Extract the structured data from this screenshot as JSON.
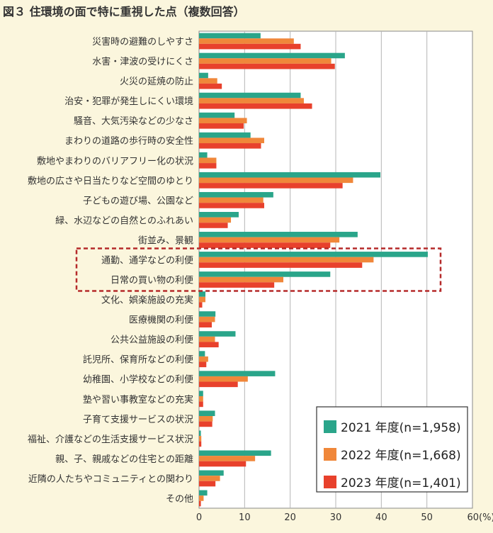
{
  "chart_data": {
    "type": "bar",
    "orientation": "horizontal",
    "title": "図３ 住環境の面で特に重視した点（複数回答）",
    "categories": [
      "災害時の避難のしやすさ",
      "水害・津波の受けにくさ",
      "火災の延焼の防止",
      "治安・犯罪が発生しにくい環境",
      "騒音、大気汚染などの少なさ",
      "まわりの道路の歩行時の安全性",
      "敷地やまわりのバリアフリー化の状況",
      "敷地の広さや日当たりなど空間のゆとり",
      "子どもの遊び場、公園など",
      "緑、水辺などの自然とのふれあい",
      "街並み、景観",
      "通勤、通学などの利便",
      "日常の買い物の利便",
      "文化、娯楽施設の充実",
      "医療機関の利便",
      "公共公益施設の利便",
      "託児所、保育所などの利便",
      "幼稚園、小学校などの利便",
      "塾や習い事教室などの充実",
      "子育て支援サービスの状況",
      "福祉、介護などの生活支援サービス状況",
      "親、子、親戚などの住宅との距離",
      "近隣の人たちやコミュニティとの関わり",
      "その他"
    ],
    "series": [
      {
        "name": "2021 年度(n=1,958)",
        "color": "#2aa58a",
        "values": [
          13.5,
          32.0,
          2.0,
          22.3,
          7.8,
          11.3,
          1.8,
          39.8,
          16.3,
          8.7,
          34.8,
          50.2,
          28.8,
          1.4,
          3.6,
          8.0,
          1.3,
          16.7,
          0.9,
          3.5,
          0.4,
          15.8,
          5.4,
          1.8
        ]
      },
      {
        "name": "2022 年度(n=1,668)",
        "color": "#f0873a",
        "values": [
          20.8,
          29.0,
          4.0,
          23.0,
          10.5,
          14.3,
          3.8,
          33.8,
          14.1,
          7.0,
          30.8,
          38.3,
          18.5,
          1.4,
          3.5,
          3.5,
          2.0,
          10.7,
          0.9,
          3.0,
          0.5,
          12.3,
          4.6,
          1.0
        ]
      },
      {
        "name": "2023 年度(n=1,401)",
        "color": "#e8412c",
        "values": [
          22.3,
          29.8,
          5.0,
          24.8,
          9.8,
          13.6,
          3.8,
          31.5,
          14.3,
          6.3,
          28.8,
          35.8,
          16.5,
          0.7,
          2.8,
          4.3,
          1.6,
          8.5,
          0.9,
          2.9,
          0.5,
          10.3,
          3.6,
          0.4
        ]
      }
    ],
    "xlim": [
      0,
      60
    ],
    "xticks": [
      "0",
      "10",
      "20",
      "30",
      "40",
      "50",
      "60(%)"
    ],
    "grid": true,
    "legend_position": "bottom-right",
    "highlight_categories": [
      "通勤、通学などの利便",
      "日常の買い物の利便"
    ]
  }
}
